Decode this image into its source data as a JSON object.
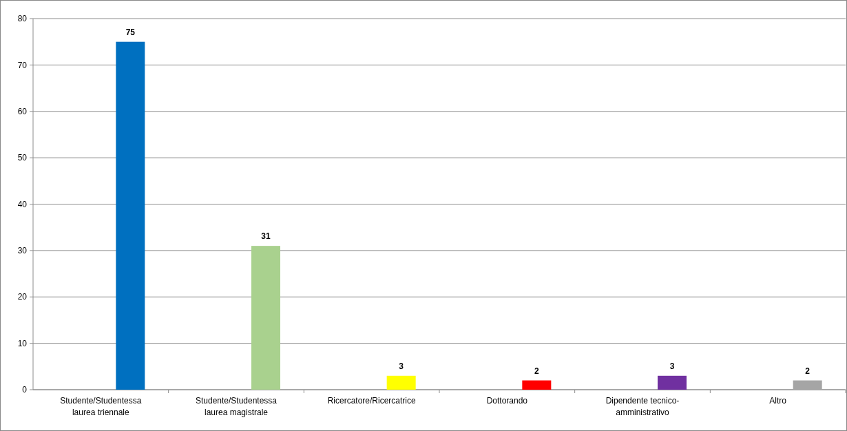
{
  "chart_data": {
    "type": "bar",
    "categories": [
      "Studente/Studentessa\nlaurea triennale",
      "Studente/Studentessa\nlaurea magistrale",
      "Ricercatore/Ricercatrice",
      "Dottorando",
      "Dipendente tecnico-\namministrativo",
      "Altro"
    ],
    "values": [
      75,
      31,
      3,
      2,
      3,
      2
    ],
    "colors": [
      "#0070c0",
      "#a9d18e",
      "#ffff00",
      "#ff0000",
      "#7030a0",
      "#a5a5a5"
    ],
    "ylim": [
      0,
      80
    ],
    "yticks": [
      0,
      10,
      20,
      30,
      40,
      50,
      60,
      70,
      80
    ],
    "grid": "y",
    "data_labels": true
  }
}
